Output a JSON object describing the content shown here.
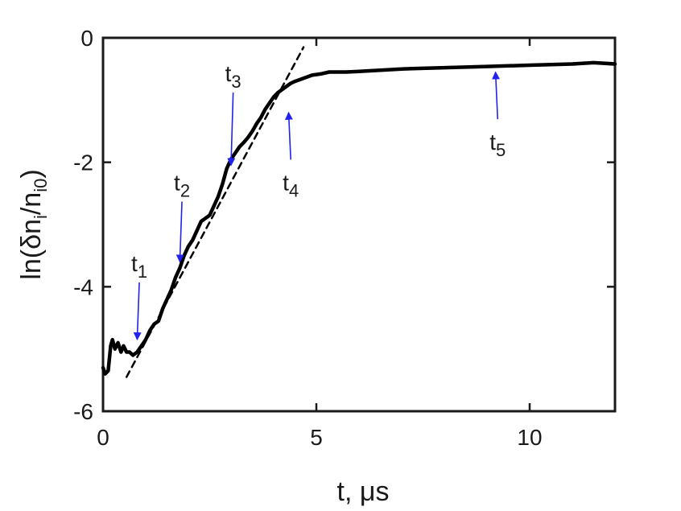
{
  "chart_data": {
    "type": "line",
    "xlabel": "t, μs",
    "ylabel": "ln(δn_i/n_i0)",
    "xlim": [
      0,
      12
    ],
    "ylim": [
      -6,
      0
    ],
    "xticks": [
      0,
      5,
      10
    ],
    "yticks": [
      0,
      -2,
      -4,
      -6
    ],
    "xtick_labels": [
      "0",
      "5",
      "10"
    ],
    "ytick_labels": [
      "0",
      "-2",
      "-4",
      "-6"
    ],
    "grid": false,
    "series": [
      {
        "style": "solid",
        "color": "#000000",
        "x": [
          0.0,
          0.05,
          0.12,
          0.18,
          0.22,
          0.28,
          0.35,
          0.42,
          0.48,
          0.55,
          0.62,
          0.7,
          0.8,
          0.9,
          1.0,
          1.1,
          1.2,
          1.3,
          1.4,
          1.5,
          1.6,
          1.7,
          1.8,
          1.9,
          2.0,
          2.1,
          2.2,
          2.3,
          2.4,
          2.5,
          2.6,
          2.7,
          2.8,
          2.9,
          3.0,
          3.1,
          3.2,
          3.3,
          3.4,
          3.5,
          3.6,
          3.7,
          3.8,
          3.9,
          4.0,
          4.1,
          4.2,
          4.3,
          4.4,
          4.5,
          4.7,
          4.9,
          5.1,
          5.3,
          5.5,
          5.7,
          6.0,
          6.5,
          7.0,
          8.0,
          9.0,
          10.0,
          11.0,
          11.5,
          12.0
        ],
        "y": [
          -5.3,
          -5.4,
          -5.35,
          -4.95,
          -4.85,
          -5.0,
          -4.9,
          -5.05,
          -4.95,
          -5.05,
          -5.05,
          -5.1,
          -5.05,
          -4.95,
          -4.85,
          -4.7,
          -4.6,
          -4.55,
          -4.35,
          -4.2,
          -4.05,
          -3.85,
          -3.7,
          -3.5,
          -3.35,
          -3.25,
          -3.1,
          -2.95,
          -2.9,
          -2.85,
          -2.7,
          -2.55,
          -2.35,
          -2.1,
          -1.95,
          -1.85,
          -1.75,
          -1.68,
          -1.6,
          -1.5,
          -1.38,
          -1.28,
          -1.15,
          -1.05,
          -0.95,
          -0.88,
          -0.83,
          -0.78,
          -0.73,
          -0.7,
          -0.65,
          -0.6,
          -0.58,
          -0.55,
          -0.55,
          -0.55,
          -0.54,
          -0.52,
          -0.5,
          -0.48,
          -0.46,
          -0.44,
          -0.42,
          -0.4,
          -0.42
        ]
      },
      {
        "style": "dashed",
        "color": "#000000",
        "x": [
          0.55,
          4.7
        ],
        "y": [
          -5.45,
          -0.15
        ]
      }
    ],
    "annotations": [
      {
        "label": "t",
        "sub": "1",
        "point": [
          0.8,
          -4.85
        ],
        "dir": "down",
        "label_at": [
          0.85,
          -3.75
        ]
      },
      {
        "label": "t",
        "sub": "2",
        "point": [
          1.8,
          -3.6
        ],
        "dir": "down",
        "label_at": [
          1.85,
          -2.45
        ]
      },
      {
        "label": "t",
        "sub": "3",
        "point": [
          3.0,
          -2.05
        ],
        "dir": "down",
        "label_at": [
          3.05,
          -0.7
        ]
      },
      {
        "label": "t",
        "sub": "4",
        "point": [
          4.35,
          -1.2
        ],
        "dir": "up",
        "label_at": [
          4.4,
          -2.45
        ]
      },
      {
        "label": "t",
        "sub": "5",
        "point": [
          9.2,
          -0.55
        ],
        "dir": "up",
        "label_at": [
          9.25,
          -1.8
        ]
      }
    ],
    "arrow_color": "#2222ee"
  }
}
